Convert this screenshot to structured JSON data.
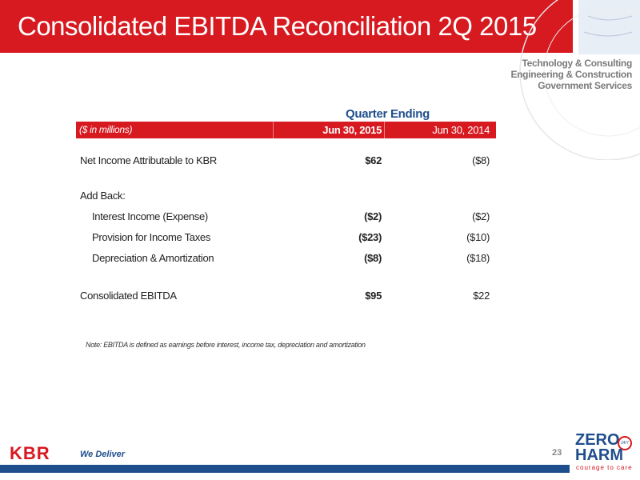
{
  "header": {
    "title": "Consolidated EBITDA Reconciliation 2Q 2015",
    "taglines": [
      "Technology & Consulting",
      "Engineering & Construction",
      "Government Services"
    ]
  },
  "table": {
    "group_header": "Quarter Ending",
    "columns": [
      "($ in millions)",
      "Jun 30, 2015",
      "Jun 30, 2014"
    ],
    "rows": [
      {
        "label": "Net Income Attributable to KBR",
        "values": [
          "$62",
          "($8)"
        ]
      },
      {
        "label": "Add Back:",
        "values": []
      },
      {
        "label": "Interest Income (Expense)",
        "values": [
          "($2)",
          "($2)"
        ]
      },
      {
        "label": "Provision for Income Taxes",
        "values": [
          "($23)",
          "($10)"
        ]
      },
      {
        "label": "Depreciation & Amortization",
        "values": [
          "($8)",
          "($18)"
        ]
      },
      {
        "label": "Consolidated EBITDA",
        "values": [
          "$95",
          "$22"
        ]
      }
    ]
  },
  "note": "Note: EBITDA is defined as earnings before interest, income tax, depreciation and amortization",
  "footer": {
    "logo": "KBR",
    "slogan": "We Deliver",
    "page": "23",
    "badge": {
      "top": "ZERO",
      "bottom": "HARM",
      "tagline": "courage to care",
      "circle": "24/7"
    }
  }
}
